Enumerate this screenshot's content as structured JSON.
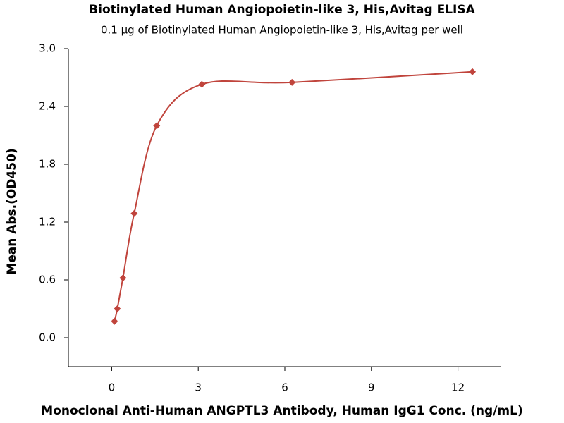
{
  "chart_data": {
    "type": "scatter",
    "title": "Biotinylated Human Angiopoietin-like 3, His,Avitag ELISA",
    "subtitle": "0.1 μg of Biotinylated Human Angiopoietin-like 3, His,Avitag per well",
    "x_label": "Monoclonal Anti-Human ANGPTL3 Antibody, Human IgG1 Conc. (ng/mL)",
    "y_label": "Mean Abs.(OD450)",
    "x": [
      0.098,
      0.195,
      0.39,
      0.78,
      1.56,
      3.125,
      6.25,
      12.5
    ],
    "values": [
      0.17,
      0.3,
      0.62,
      1.29,
      2.2,
      2.63,
      2.65,
      2.76
    ],
    "color": "#c0443c",
    "xlim": [
      -1.5,
      13.5
    ],
    "xticks": [
      0,
      3,
      6,
      9,
      12
    ],
    "ylim": [
      -0.3,
      3.0
    ],
    "yticks": [
      {
        "value": 0,
        "label": "0.0"
      },
      0.6,
      1.2,
      1.8,
      2.4,
      {
        "value": 3,
        "label": "3.0"
      }
    ]
  }
}
